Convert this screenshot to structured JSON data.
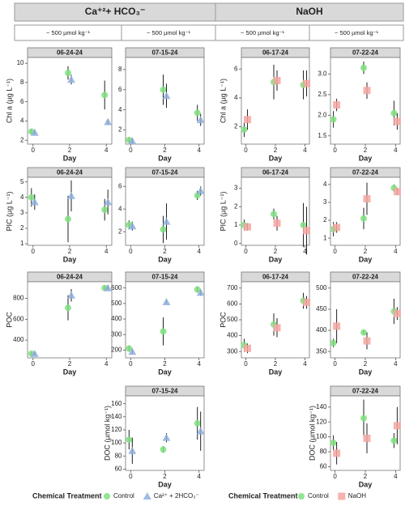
{
  "facets": {
    "groups": [
      "Ca⁺²+ HCO₃⁻",
      "NaOH"
    ],
    "doses": [
      "~ 500 µmol kg⁻¹",
      "~ 500 µmol kg⁻¹",
      "~ 500 µmol kg⁻¹",
      "~ 500 µmol kg⁻¹"
    ]
  },
  "legends": [
    {
      "title": "Chemical Treatment"
    },
    {
      "title": "Chemical Treatment"
    }
  ],
  "chart_data": [
    {
      "type": "scatter",
      "title": "06-24-24",
      "ylabel": "Chl a (µg L⁻¹)",
      "xlabel": "Day",
      "x": [
        0,
        2,
        4
      ],
      "xlim": [
        -0.3,
        4.3
      ],
      "xticks": [
        0,
        2,
        4
      ],
      "ylim": [
        1.6,
        10.6
      ],
      "yticks": [
        2,
        4,
        6,
        8,
        10
      ],
      "series": [
        {
          "name": "Control",
          "color": "#7fe07f",
          "marker": "circle",
          "values": [
            2.9,
            9.0,
            6.7
          ],
          "errors": [
            0.2,
            0.7,
            1.5
          ]
        },
        {
          "name": "Ca²⁺ + 2HCO₃⁻",
          "color": "#8fb0dd",
          "marker": "triangle",
          "values": [
            2.8,
            8.3,
            3.9
          ],
          "errors": [
            0.2,
            0.5,
            0.3
          ]
        }
      ]
    },
    {
      "type": "scatter",
      "title": "07-15-24",
      "xlabel": "Day",
      "x": [
        0,
        2,
        4
      ],
      "xlim": [
        -0.3,
        4.3
      ],
      "xticks": [
        0,
        2,
        4
      ],
      "ylim": [
        0.6,
        9.2
      ],
      "yticks": [
        2,
        4,
        6,
        8
      ],
      "series": [
        {
          "name": "Control",
          "color": "#7fe07f",
          "marker": "circle",
          "values": [
            1.0,
            6.0,
            3.7
          ],
          "errors": [
            0.3,
            1.5,
            0.8
          ]
        },
        {
          "name": "Ca²⁺ + 2HCO₃⁻",
          "color": "#8fb0dd",
          "marker": "triangle",
          "values": [
            0.9,
            5.4,
            3.0
          ],
          "errors": [
            0.3,
            1.2,
            0.6
          ]
        }
      ]
    },
    {
      "type": "scatter",
      "title": "06-17-24",
      "ylabel": "Chl a (µg L⁻¹)",
      "xlabel": "Day",
      "x": [
        0,
        2,
        4
      ],
      "xlim": [
        -0.3,
        4.3
      ],
      "xticks": [
        0,
        2,
        4
      ],
      "ylim": [
        0.8,
        6.8
      ],
      "yticks": [
        2,
        4,
        6
      ],
      "series": [
        {
          "name": "Control",
          "color": "#7fe07f",
          "marker": "circle",
          "values": [
            1.8,
            5.1,
            4.9
          ],
          "errors": [
            0.5,
            1.2,
            1.0
          ]
        },
        {
          "name": "NaOH",
          "color": "#f4a6a0",
          "marker": "square",
          "values": [
            2.5,
            5.2,
            5.0
          ],
          "errors": [
            0.7,
            0.7,
            0.9
          ]
        }
      ]
    },
    {
      "type": "scatter",
      "title": "07-22-24",
      "xlabel": "Day",
      "x": [
        0,
        2,
        4
      ],
      "xlim": [
        -0.3,
        4.3
      ],
      "xticks": [
        0,
        2,
        4
      ],
      "ylim": [
        1.3,
        3.4
      ],
      "yticks": [
        {
          "value": 1.5,
          "label": "1.5"
        },
        {
          "value": 2,
          "label": "2.0"
        },
        {
          "value": 2.5,
          "label": "2.5"
        },
        {
          "value": 3,
          "label": "3.0"
        }
      ],
      "series": [
        {
          "name": "Control",
          "color": "#7fe07f",
          "marker": "circle",
          "values": [
            1.9,
            3.15,
            2.05
          ],
          "errors": [
            0.2,
            0.15,
            0.3
          ]
        },
        {
          "name": "NaOH",
          "color": "#f4a6a0",
          "marker": "square",
          "values": [
            2.25,
            2.6,
            1.85
          ],
          "errors": [
            0.15,
            0.2,
            0.2
          ]
        }
      ]
    },
    {
      "type": "scatter",
      "title": "06-24-24",
      "ylabel": "PIC (µg L⁻¹)",
      "xlabel": "Day",
      "x": [
        0,
        2,
        4
      ],
      "xlim": [
        -0.3,
        4.3
      ],
      "xticks": [
        0,
        2,
        4
      ],
      "ylim": [
        0.9,
        5.3
      ],
      "yticks": [
        1,
        2,
        3,
        4,
        5
      ],
      "series": [
        {
          "name": "Control",
          "color": "#7fe07f",
          "marker": "circle",
          "values": [
            4.0,
            2.6,
            3.2
          ],
          "errors": [
            0.6,
            1.5,
            0.7
          ]
        },
        {
          "name": "Ca²⁺ + 2HCO₃⁻",
          "color": "#8fb0dd",
          "marker": "triangle",
          "values": [
            3.7,
            4.1,
            3.7
          ],
          "errors": [
            0.5,
            1.0,
            0.8
          ]
        }
      ]
    },
    {
      "type": "scatter",
      "title": "07-15-24",
      "xlabel": "Day",
      "x": [
        0,
        2,
        4
      ],
      "xlim": [
        -0.3,
        4.3
      ],
      "xticks": [
        0,
        2,
        4
      ],
      "ylim": [
        0.8,
        6.8
      ],
      "yticks": [
        2,
        4,
        6
      ],
      "series": [
        {
          "name": "Control",
          "color": "#7fe07f",
          "marker": "circle",
          "values": [
            2.6,
            2.2,
            5.2
          ],
          "errors": [
            0.4,
            1.2,
            0.4
          ]
        },
        {
          "name": "Ca²⁺ + 2HCO₃⁻",
          "color": "#8fb0dd",
          "marker": "triangle",
          "values": [
            2.5,
            2.9,
            5.6
          ],
          "errors": [
            0.4,
            1.6,
            0.4
          ]
        }
      ]
    },
    {
      "type": "scatter",
      "title": "06-17-24",
      "ylabel": "PIC (µg L⁻¹)",
      "xlabel": "Day",
      "x": [
        0,
        2,
        4
      ],
      "xlim": [
        -0.3,
        4.3
      ],
      "xticks": [
        0,
        2,
        4
      ],
      "ylim": [
        -0.1,
        3.6
      ],
      "yticks": [
        0,
        1,
        2,
        3
      ],
      "series": [
        {
          "name": "Control",
          "color": "#7fe07f",
          "marker": "circle",
          "values": [
            1.0,
            1.6,
            1.0
          ],
          "errors": [
            0.3,
            0.3,
            1.2
          ]
        },
        {
          "name": "NaOH",
          "color": "#f4a6a0",
          "marker": "square",
          "values": [
            0.9,
            1.1,
            0.7
          ],
          "errors": [
            0.2,
            0.4,
            1.3
          ]
        }
      ]
    },
    {
      "type": "scatter",
      "title": "07-22-24",
      "xlabel": "Day",
      "x": [
        0,
        2,
        4
      ],
      "xlim": [
        -0.3,
        4.3
      ],
      "xticks": [
        0,
        2,
        4
      ],
      "ylim": [
        0.6,
        4.4
      ],
      "yticks": [
        1,
        2,
        3,
        4
      ],
      "series": [
        {
          "name": "Control",
          "color": "#7fe07f",
          "marker": "circle",
          "values": [
            1.5,
            2.1,
            3.8
          ],
          "errors": [
            0.4,
            0.6,
            0.2
          ]
        },
        {
          "name": "NaOH",
          "color": "#f4a6a0",
          "marker": "square",
          "values": [
            1.6,
            3.2,
            3.6
          ],
          "errors": [
            0.3,
            0.9,
            0.2
          ]
        }
      ]
    },
    {
      "type": "scatter",
      "title": "06-24-24",
      "ylabel": "POC",
      "xlabel": "Day",
      "x": [
        0,
        2,
        4
      ],
      "xlim": [
        -0.3,
        4.3
      ],
      "xticks": [
        0,
        2,
        4
      ],
      "ylim": [
        230,
        960
      ],
      "yticks": [
        400,
        600,
        800
      ],
      "series": [
        {
          "name": "Control",
          "color": "#7fe07f",
          "marker": "circle",
          "values": [
            270,
            710,
            900
          ],
          "errors": [
            15,
            120,
            20
          ]
        },
        {
          "name": "Ca²⁺ + 2HCO₃⁻",
          "color": "#8fb0dd",
          "marker": "triangle",
          "values": [
            270,
            830,
            900
          ],
          "errors": [
            15,
            60,
            20
          ]
        }
      ]
    },
    {
      "type": "scatter",
      "title": "07-15-24",
      "xlabel": "Day",
      "x": [
        0,
        2,
        4
      ],
      "xlim": [
        -0.3,
        4.3
      ],
      "xticks": [
        0,
        2,
        4
      ],
      "ylim": [
        150,
        640
      ],
      "yticks": [
        200,
        300,
        400,
        500,
        600
      ],
      "series": [
        {
          "name": "Control",
          "color": "#7fe07f",
          "marker": "circle",
          "values": [
            210,
            320,
            590
          ],
          "errors": [
            20,
            90,
            20
          ]
        },
        {
          "name": "Ca²⁺ + 2HCO₃⁻",
          "color": "#8fb0dd",
          "marker": "triangle",
          "values": [
            190,
            510,
            570
          ],
          "errors": [
            15,
            10,
            20
          ]
        }
      ]
    },
    {
      "type": "scatter",
      "title": "06-17-24",
      "ylabel": "POC",
      "xlabel": "Day",
      "x": [
        0,
        2,
        4
      ],
      "xlim": [
        -0.3,
        4.3
      ],
      "xticks": [
        0,
        2,
        4
      ],
      "ylim": [
        260,
        740
      ],
      "yticks": [
        300,
        400,
        500,
        600,
        700
      ],
      "series": [
        {
          "name": "Control",
          "color": "#7fe07f",
          "marker": "circle",
          "values": [
            340,
            470,
            620
          ],
          "errors": [
            40,
            70,
            50
          ]
        },
        {
          "name": "NaOH",
          "color": "#f4a6a0",
          "marker": "square",
          "values": [
            320,
            450,
            610
          ],
          "errors": [
            30,
            60,
            40
          ]
        }
      ]
    },
    {
      "type": "scatter",
      "title": "07-22-24",
      "xlabel": "Day",
      "x": [
        0,
        2,
        4
      ],
      "xlim": [
        -0.3,
        4.3
      ],
      "xticks": [
        0,
        2,
        4
      ],
      "ylim": [
        335,
        515
      ],
      "yticks": [
        350,
        400,
        450,
        500
      ],
      "series": [
        {
          "name": "Control",
          "color": "#7fe07f",
          "marker": "circle",
          "values": [
            370,
            395,
            445
          ],
          "errors": [
            10,
            5,
            30
          ]
        },
        {
          "name": "NaOH",
          "color": "#f4a6a0",
          "marker": "square",
          "values": [
            410,
            375,
            440
          ],
          "errors": [
            40,
            20,
            15
          ]
        }
      ]
    },
    {
      "type": "scatter",
      "title": "07-15-24",
      "ylabel": "DOC (µmol kg⁻¹)",
      "xlabel": "Day",
      "x": [
        0,
        2,
        4
      ],
      "xlim": [
        -0.3,
        4.3
      ],
      "xticks": [
        0,
        2,
        4
      ],
      "ylim": [
        58,
        172
      ],
      "yticks": [
        60,
        80,
        100,
        120,
        140,
        160
      ],
      "series": [
        {
          "name": "Control",
          "color": "#7fe07f",
          "marker": "circle",
          "values": [
            105,
            90,
            130
          ],
          "errors": [
            15,
            5,
            25
          ]
        },
        {
          "name": "Ca²⁺ + 2HCO₃⁻",
          "color": "#8fb0dd",
          "marker": "triangle",
          "values": [
            88,
            108,
            118
          ],
          "errors": [
            20,
            7,
            30
          ]
        }
      ]
    },
    {
      "type": "scatter",
      "title": "07-22-24",
      "ylabel": "DOC (µmol kg⁻¹)",
      "xlabel": "Day",
      "x": [
        0,
        2,
        4
      ],
      "xlim": [
        -0.3,
        4.3
      ],
      "xticks": [
        0,
        2,
        4
      ],
      "ylim": [
        55,
        155
      ],
      "yticks": [
        60,
        80,
        100,
        120,
        140
      ],
      "series": [
        {
          "name": "Control",
          "color": "#7fe07f",
          "marker": "circle",
          "values": [
            92,
            125,
            95
          ],
          "errors": [
            10,
            25,
            10
          ]
        },
        {
          "name": "NaOH",
          "color": "#f4a6a0",
          "marker": "square",
          "values": [
            78,
            98,
            115
          ],
          "errors": [
            15,
            20,
            25
          ]
        }
      ]
    }
  ]
}
